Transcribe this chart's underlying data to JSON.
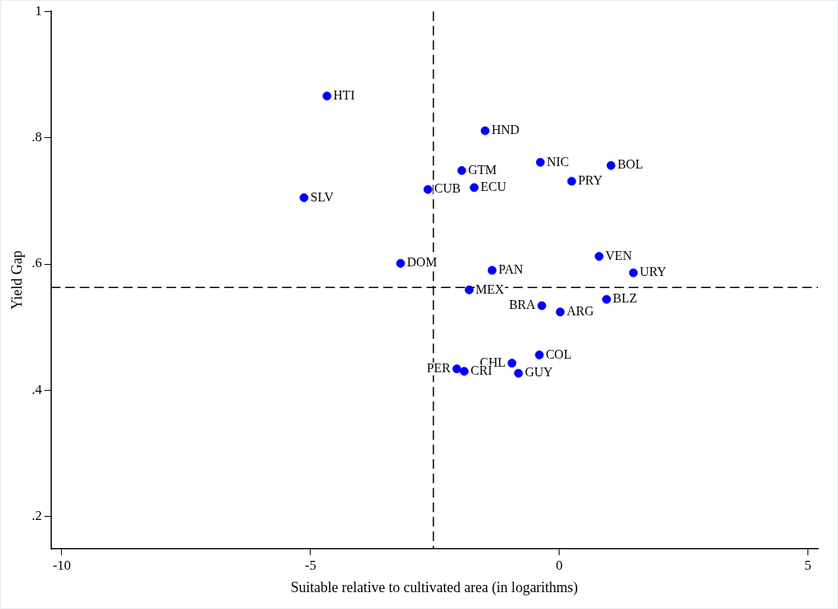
{
  "chart_data": {
    "type": "scatter",
    "xlabel": "Suitable relative to cultivated area (in logarithms)",
    "ylabel": "Yield Gap",
    "x": [
      -4.67,
      -1.49,
      -0.38,
      1.04,
      -1.96,
      0.25,
      -2.64,
      -1.71,
      -5.13,
      -3.19,
      0.8,
      1.49,
      -1.35,
      -1.81,
      0.95,
      -0.35,
      0.02,
      -0.4,
      -0.95,
      -0.82,
      -2.06,
      -1.91
    ],
    "series": [
      {
        "color": "#0000ff",
        "values": [
          0.866,
          0.811,
          0.761,
          0.756,
          0.748,
          0.731,
          0.718,
          0.721,
          0.705,
          0.601,
          0.612,
          0.586,
          0.59,
          0.559,
          0.544,
          0.534,
          0.524,
          0.456,
          0.443,
          0.427,
          0.434,
          0.43
        ]
      }
    ],
    "marker": "circle",
    "grid": false,
    "legend": false,
    "xlim": [
      -10.22,
      5.2
    ],
    "xticks": [
      -10,
      -5,
      0,
      5
    ],
    "ylim": [
      0.149,
      1.0
    ],
    "yticks": [
      {
        "value": 0.2,
        "label": ".2"
      },
      {
        "value": 0.4,
        "label": ".4"
      },
      {
        "value": 0.6,
        "label": ".6"
      },
      {
        "value": 0.8,
        "label": ".8"
      },
      {
        "value": 1,
        "label": "1"
      }
    ],
    "ref_lines": [
      {
        "axis": "x",
        "value": -2.53,
        "line_style": "dashed",
        "color": "#000000"
      },
      {
        "axis": "y",
        "value": 0.563,
        "line_style": "dashed",
        "color": "#000000"
      }
    ],
    "annotations": [
      {
        "text": "HTI",
        "x": -4.67,
        "y": 0.866
      },
      {
        "text": "HND",
        "x": -1.49,
        "y": 0.811
      },
      {
        "text": "NIC",
        "x": -0.38,
        "y": 0.761
      },
      {
        "text": "BOL",
        "x": 1.04,
        "y": 0.756
      },
      {
        "text": "GTM",
        "x": -1.96,
        "y": 0.748
      },
      {
        "text": "PRY",
        "x": 0.25,
        "y": 0.731
      },
      {
        "text": "CUB",
        "x": -2.64,
        "y": 0.718
      },
      {
        "text": "ECU",
        "x": -1.71,
        "y": 0.721
      },
      {
        "text": "SLV",
        "x": -5.13,
        "y": 0.705
      },
      {
        "text": "DOM",
        "x": -3.19,
        "y": 0.601
      },
      {
        "text": "VEN",
        "x": 0.8,
        "y": 0.612
      },
      {
        "text": "URY",
        "x": 1.49,
        "y": 0.586
      },
      {
        "text": "PAN",
        "x": -1.35,
        "y": 0.59
      },
      {
        "text": "MEX",
        "x": -1.81,
        "y": 0.559
      },
      {
        "text": "BLZ",
        "x": 0.95,
        "y": 0.544
      },
      {
        "text": "BRA",
        "x": -0.35,
        "y": 0.534
      },
      {
        "text": "ARG",
        "x": 0.02,
        "y": 0.524
      },
      {
        "text": "COL",
        "x": -0.4,
        "y": 0.456
      },
      {
        "text": "CHL",
        "x": -0.95,
        "y": 0.443
      },
      {
        "text": "GUY",
        "x": -0.82,
        "y": 0.427
      },
      {
        "text": "PER",
        "x": -2.06,
        "y": 0.434
      },
      {
        "text": "CRI",
        "x": -1.91,
        "y": 0.43
      }
    ]
  }
}
